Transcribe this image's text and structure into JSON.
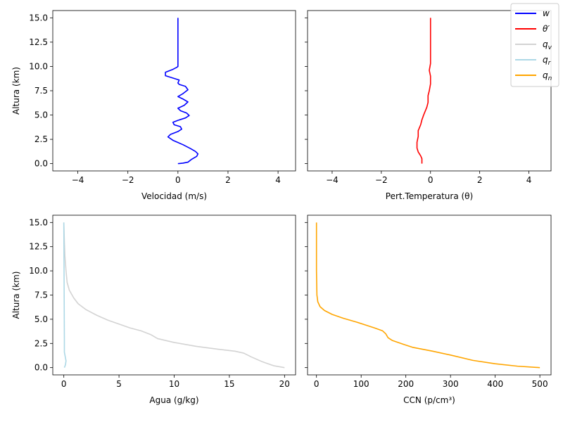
{
  "chart_data": [
    {
      "type": "line",
      "xlabel": "Velocidad (m/s)",
      "ylabel": "Altura (km)",
      "xlim": [
        -5,
        4.7
      ],
      "ylim": [
        -0.75,
        15.75
      ],
      "xticks": [
        -4,
        -2,
        0,
        2,
        4
      ],
      "yticks": [
        0.0,
        2.5,
        5.0,
        7.5,
        10.0,
        12.5,
        15.0
      ],
      "xtick_labels": [
        "−4",
        "−2",
        "0",
        "2",
        "4"
      ],
      "ytick_labels": [
        "0.0",
        "2.5",
        "5.0",
        "7.5",
        "10.0",
        "12.5",
        "15.0"
      ],
      "series": [
        {
          "name": "w",
          "color": "#0000ff",
          "x": [
            0.0,
            0.2,
            0.4,
            0.55,
            0.75,
            0.8,
            0.7,
            0.5,
            0.2,
            -0.2,
            -0.4,
            -0.3,
            0.0,
            0.15,
            0.1,
            -0.15,
            -0.2,
            0.0,
            0.3,
            0.45,
            0.35,
            0.1,
            0.0,
            0.25,
            0.4,
            0.2,
            0.0,
            0.2,
            0.4,
            0.3,
            0.05,
            0.0,
            0.05,
            -0.5,
            -0.5,
            -0.2,
            -0.05,
            0.0,
            0.0,
            0.0
          ],
          "y": [
            0.0,
            0.05,
            0.15,
            0.45,
            0.75,
            1.0,
            1.25,
            1.55,
            1.95,
            2.4,
            2.75,
            3.0,
            3.3,
            3.55,
            3.8,
            4.0,
            4.25,
            4.45,
            4.7,
            4.95,
            5.2,
            5.45,
            5.7,
            6.0,
            6.35,
            6.65,
            6.9,
            7.2,
            7.6,
            7.95,
            8.15,
            8.3,
            8.6,
            9.05,
            9.4,
            9.7,
            9.9,
            10.0,
            12.0,
            15.0
          ]
        }
      ]
    },
    {
      "type": "line",
      "xlabel": "Pert.Temperatura (θ)",
      "ylabel": "",
      "xlim": [
        -5,
        4.9
      ],
      "ylim": [
        -0.75,
        15.75
      ],
      "xticks": [
        -4,
        -2,
        0,
        2,
        4
      ],
      "xtick_labels": [
        "−4",
        "−2",
        "0",
        "2",
        "4"
      ],
      "series": [
        {
          "name": "θ′",
          "color": "#ff0000",
          "x": [
            -0.35,
            -0.35,
            -0.4,
            -0.5,
            -0.55,
            -0.55,
            -0.5,
            -0.5,
            -0.4,
            -0.35,
            -0.28,
            -0.15,
            -0.1,
            -0.1,
            -0.05,
            0.0,
            0.0,
            -0.05,
            0.0,
            0.0
          ],
          "y": [
            0.0,
            0.5,
            0.8,
            1.2,
            1.6,
            2.2,
            2.8,
            3.4,
            4.0,
            4.5,
            5.0,
            5.8,
            6.3,
            7.0,
            7.5,
            8.2,
            9.0,
            9.6,
            10.3,
            15.0
          ]
        }
      ]
    },
    {
      "type": "line",
      "xlabel": "Agua (g/kg)",
      "ylabel": "Altura (km)",
      "xlim": [
        -1.0,
        21.0
      ],
      "ylim": [
        -0.75,
        15.75
      ],
      "xticks": [
        0,
        5,
        10,
        15,
        20
      ],
      "yticks": [
        0.0,
        2.5,
        5.0,
        7.5,
        10.0,
        12.5,
        15.0
      ],
      "xtick_labels": [
        "0",
        "5",
        "10",
        "15",
        "20"
      ],
      "ytick_labels": [
        "0.0",
        "2.5",
        "5.0",
        "7.5",
        "10.0",
        "12.5",
        "15.0"
      ],
      "series": [
        {
          "name": "q_v",
          "color": "#d3d3d3",
          "x": [
            20.0,
            19.0,
            18.0,
            17.0,
            16.3,
            15.5,
            14.0,
            12.0,
            10.0,
            8.5,
            7.9,
            7.0,
            6.0,
            5.0,
            4.0,
            3.0,
            2.0,
            1.3,
            0.9,
            0.5,
            0.3,
            0.2,
            0.1,
            0.05,
            0.0
          ],
          "y": [
            0.0,
            0.2,
            0.6,
            1.1,
            1.5,
            1.7,
            1.9,
            2.2,
            2.6,
            3.0,
            3.4,
            3.8,
            4.1,
            4.5,
            4.9,
            5.4,
            6.0,
            6.6,
            7.2,
            8.0,
            8.8,
            10.0,
            11.5,
            13.0,
            15.0
          ]
        },
        {
          "name": "q_r",
          "color": "#add8e6",
          "x": [
            0.05,
            0.15,
            0.2,
            0.15,
            0.1,
            0.05,
            0.05,
            0.0
          ],
          "y": [
            0.0,
            0.3,
            0.7,
            1.0,
            1.3,
            1.6,
            3.0,
            15.0
          ]
        }
      ]
    },
    {
      "type": "line",
      "xlabel": "CCN (p/cm³)",
      "ylabel": "",
      "xlim": [
        -20,
        525
      ],
      "ylim": [
        -0.75,
        15.75
      ],
      "xticks": [
        0,
        100,
        200,
        300,
        400,
        500
      ],
      "xtick_labels": [
        "0",
        "100",
        "200",
        "300",
        "400",
        "500"
      ],
      "series": [
        {
          "name": "q_n",
          "color": "#ffa500",
          "x": [
            500,
            450,
            400,
            350,
            300,
            260,
            215,
            195,
            170,
            160,
            155,
            148,
            130,
            110,
            90,
            60,
            35,
            18,
            8,
            3,
            1,
            0,
            0
          ],
          "y": [
            0.0,
            0.15,
            0.4,
            0.75,
            1.3,
            1.7,
            2.1,
            2.4,
            2.8,
            3.1,
            3.5,
            3.8,
            4.1,
            4.4,
            4.7,
            5.1,
            5.5,
            5.9,
            6.3,
            6.8,
            7.5,
            10.0,
            15.0
          ]
        }
      ]
    }
  ],
  "legend": {
    "placement": "top-right",
    "entries": [
      {
        "label": "w",
        "color": "#0000ff"
      },
      {
        "label": "θ′",
        "color": "#ff0000"
      },
      {
        "label": "qv",
        "color": "#d3d3d3"
      },
      {
        "label": "qr",
        "color": "#add8e6"
      },
      {
        "label": "qn",
        "color": "#ffa500"
      }
    ]
  }
}
